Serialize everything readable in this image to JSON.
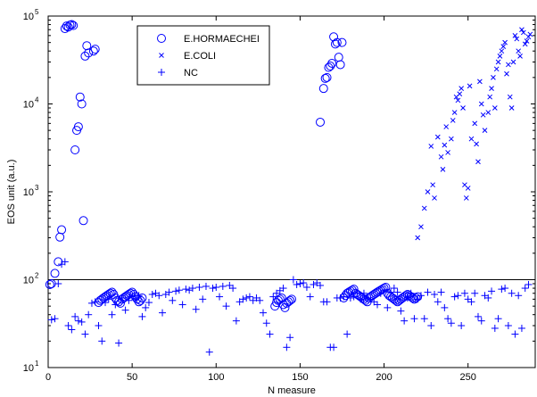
{
  "chart_data": {
    "type": "scatter",
    "xlabel": "N measure",
    "ylabel": "EOS unit (a.u.)",
    "xlim": [
      0,
      290
    ],
    "ylim": [
      10,
      100000
    ],
    "yscale": "log",
    "xticks": [
      "0",
      "50",
      "100",
      "150",
      "200",
      "250"
    ],
    "xtick_values": [
      0,
      50,
      100,
      150,
      200,
      250
    ],
    "yticks": [
      {
        "base": "10",
        "exp": "1",
        "value": 10
      },
      {
        "base": "10",
        "exp": "2",
        "value": 100
      },
      {
        "base": "10",
        "exp": "3",
        "value": 1000
      },
      {
        "base": "10",
        "exp": "4",
        "value": 10000
      },
      {
        "base": "10",
        "exp": "5",
        "value": 100000
      }
    ],
    "reference_line": {
      "y": 100
    },
    "legend": {
      "position": "top-left-center"
    },
    "color": "#0000ff",
    "series": [
      {
        "name": "E.HORMAECHEI",
        "marker": "circle",
        "x": [
          1,
          2,
          4,
          6,
          7,
          8,
          10,
          11,
          12,
          13,
          14,
          15,
          16,
          17,
          18,
          19,
          20,
          21,
          22,
          23,
          24,
          27,
          28,
          30,
          31,
          32,
          33,
          34,
          35,
          36,
          37,
          38,
          39,
          40,
          41,
          42,
          43,
          44,
          45,
          46,
          47,
          48,
          49,
          50,
          51,
          52,
          53,
          54,
          55,
          56,
          135,
          136,
          137,
          138,
          139,
          140,
          141,
          142,
          143,
          144,
          145,
          162,
          164,
          165,
          166,
          167,
          168,
          169,
          170,
          171,
          172,
          173,
          174,
          175,
          176,
          177,
          178,
          179,
          180,
          181,
          182,
          183,
          184,
          185,
          186,
          187,
          188,
          189,
          190,
          191,
          192,
          193,
          194,
          195,
          196,
          197,
          198,
          199,
          200,
          201,
          202,
          203,
          204,
          205,
          206,
          207,
          208,
          209,
          210,
          211,
          212,
          213,
          214,
          215,
          216,
          217,
          218,
          219,
          220
        ],
        "y": [
          88,
          90,
          118,
          160,
          305,
          370,
          72000,
          77000,
          75000,
          79000,
          80000,
          78000,
          3000,
          5000,
          5500,
          12000,
          10000,
          470,
          35000,
          46000,
          38000,
          40000,
          42000,
          55,
          58,
          60,
          62,
          64,
          66,
          68,
          70,
          72,
          68,
          62,
          58,
          56,
          54,
          60,
          62,
          64,
          66,
          68,
          70,
          72,
          68,
          64,
          60,
          56,
          58,
          62,
          50,
          55,
          58,
          60,
          62,
          52,
          48,
          54,
          56,
          58,
          60,
          6200,
          15000,
          19500,
          20000,
          26000,
          27000,
          29000,
          58000,
          48000,
          50000,
          34000,
          28000,
          50000,
          62,
          66,
          70,
          72,
          74,
          76,
          78,
          70,
          68,
          66,
          64,
          62,
          60,
          58,
          56,
          62,
          64,
          66,
          68,
          70,
          72,
          74,
          76,
          78,
          80,
          82,
          70,
          66,
          64,
          62,
          60,
          58,
          56,
          58,
          60,
          62,
          64,
          66,
          68,
          66,
          64,
          62,
          60,
          62,
          64
        ]
      },
      {
        "name": "E.COLI",
        "marker": "x",
        "x": [
          220,
          222,
          224,
          226,
          228,
          229,
          230,
          232,
          234,
          235,
          236,
          237,
          238,
          240,
          241,
          242,
          243,
          244,
          245,
          246,
          247,
          248,
          249,
          250,
          251,
          252,
          254,
          255,
          256,
          257,
          258,
          259,
          260,
          262,
          263,
          264,
          265,
          266,
          267,
          268,
          269,
          270,
          271,
          272,
          273,
          274,
          275,
          276,
          277,
          278,
          279,
          280,
          281,
          282,
          283,
          284,
          285,
          286,
          287
        ],
        "y": [
          300,
          400,
          650,
          1000,
          3300,
          1200,
          850,
          4200,
          2500,
          1800,
          3400,
          5500,
          2800,
          4000,
          6500,
          8000,
          12000,
          11000,
          13000,
          15000,
          9000,
          1200,
          850,
          1100,
          16000,
          4000,
          6000,
          3500,
          2200,
          18000,
          10000,
          7500,
          5000,
          8000,
          12000,
          15000,
          20000,
          9000,
          25000,
          30000,
          35000,
          40000,
          45000,
          50000,
          22000,
          28000,
          12000,
          9000,
          30000,
          60000,
          55000,
          40000,
          35000,
          70000,
          65000,
          48000,
          52000,
          58000,
          62000
        ]
      },
      {
        "name": "NC",
        "marker": "plus",
        "x": [
          2,
          4,
          6,
          8,
          10,
          12,
          14,
          16,
          18,
          20,
          22,
          24,
          26,
          28,
          30,
          32,
          34,
          36,
          38,
          40,
          42,
          44,
          46,
          48,
          50,
          52,
          54,
          56,
          58,
          60,
          62,
          64,
          66,
          68,
          70,
          72,
          74,
          76,
          78,
          80,
          82,
          84,
          86,
          88,
          90,
          92,
          94,
          96,
          98,
          100,
          102,
          104,
          106,
          108,
          110,
          112,
          114,
          116,
          118,
          120,
          122,
          124,
          126,
          128,
          130,
          132,
          134,
          136,
          138,
          140,
          142,
          144,
          146,
          148,
          150,
          152,
          154,
          156,
          158,
          160,
          162,
          164,
          166,
          168,
          170,
          172,
          174,
          176,
          178,
          180,
          182,
          184,
          186,
          188,
          190,
          192,
          194,
          196,
          198,
          200,
          202,
          204,
          206,
          208,
          210,
          212,
          214,
          216,
          218,
          220,
          222,
          224,
          226,
          228,
          230,
          232,
          234,
          236,
          238,
          240,
          242,
          244,
          246,
          248,
          250,
          252,
          254,
          256,
          258,
          260,
          262,
          264,
          266,
          268,
          270,
          272,
          274,
          276,
          278,
          280,
          282,
          284,
          286
        ],
        "y": [
          35,
          36,
          90,
          150,
          160,
          30,
          27,
          38,
          34,
          33,
          24,
          40,
          54,
          56,
          30,
          20,
          55,
          60,
          40,
          52,
          19,
          62,
          45,
          58,
          64,
          60,
          66,
          38,
          48,
          55,
          68,
          70,
          66,
          42,
          68,
          72,
          58,
          74,
          76,
          52,
          78,
          76,
          80,
          46,
          82,
          60,
          84,
          15,
          80,
          82,
          64,
          84,
          50,
          86,
          80,
          34,
          56,
          60,
          62,
          64,
          58,
          62,
          58,
          42,
          32,
          24,
          64,
          70,
          75,
          80,
          17,
          22,
          100,
          88,
          90,
          92,
          82,
          64,
          88,
          92,
          86,
          56,
          56,
          17,
          17,
          62,
          62,
          64,
          24,
          62,
          64,
          70,
          60,
          70,
          62,
          60,
          56,
          52,
          70,
          76,
          48,
          72,
          80,
          72,
          44,
          34,
          62,
          70,
          36,
          60,
          66,
          36,
          72,
          30,
          68,
          56,
          72,
          48,
          36,
          32,
          64,
          66,
          30,
          70,
          60,
          56,
          70,
          38,
          34,
          66,
          62,
          74,
          28,
          36,
          78,
          80,
          30,
          70,
          24,
          66,
          28,
          80,
          88
        ]
      }
    ]
  }
}
